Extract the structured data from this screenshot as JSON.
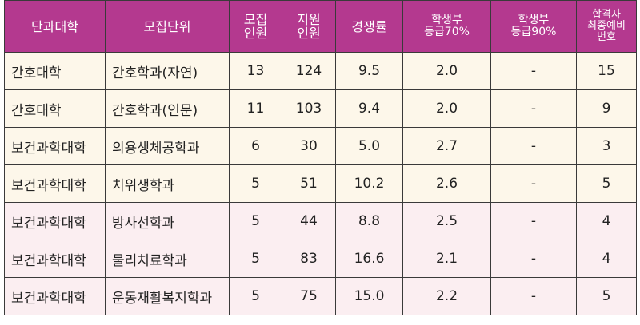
{
  "headers": [
    {
      "key": "college",
      "lines": [
        "단과대학"
      ]
    },
    {
      "key": "unit",
      "lines": [
        "모집단위"
      ]
    },
    {
      "key": "recruit",
      "lines": [
        "모집",
        "인원"
      ]
    },
    {
      "key": "applicants",
      "lines": [
        "지원",
        "인원"
      ]
    },
    {
      "key": "ratio",
      "lines": [
        "경쟁률"
      ]
    },
    {
      "key": "grade70",
      "lines": [
        "학생부",
        "등급70%"
      ]
    },
    {
      "key": "grade90",
      "lines": [
        "학생부",
        "등급90%"
      ]
    },
    {
      "key": "waitlist",
      "lines": [
        "합격자",
        "최종예비",
        "번호"
      ]
    }
  ],
  "rows": [
    {
      "college": "간호대학",
      "unit": "간호학과(자연)",
      "recruit": "13",
      "applicants": "124",
      "ratio": "9.5",
      "grade70": "2.0",
      "grade90": "-",
      "waitlist": "15"
    },
    {
      "college": "간호대학",
      "unit": "간호학과(인문)",
      "recruit": "11",
      "applicants": "103",
      "ratio": "9.4",
      "grade70": "2.0",
      "grade90": "-",
      "waitlist": "9"
    },
    {
      "college": "보건과학대학",
      "unit": "의용생체공학과",
      "recruit": "6",
      "applicants": "30",
      "ratio": "5.0",
      "grade70": "2.7",
      "grade90": "-",
      "waitlist": "3"
    },
    {
      "college": "보건과학대학",
      "unit": "치위생학과",
      "recruit": "5",
      "applicants": "51",
      "ratio": "10.2",
      "grade70": "2.6",
      "grade90": "-",
      "waitlist": "5"
    },
    {
      "college": "보건과학대학",
      "unit": "방사선학과",
      "recruit": "5",
      "applicants": "44",
      "ratio": "8.8",
      "grade70": "2.5",
      "grade90": "-",
      "waitlist": "4"
    },
    {
      "college": "보건과학대학",
      "unit": "물리치료학과",
      "recruit": "5",
      "applicants": "83",
      "ratio": "16.6",
      "grade70": "2.1",
      "grade90": "-",
      "waitlist": "4"
    },
    {
      "college": "보건과학대학",
      "unit": "운동재활복지학과",
      "recruit": "5",
      "applicants": "75",
      "ratio": "15.0",
      "grade70": "2.2",
      "grade90": "-",
      "waitlist": "5"
    }
  ],
  "colors": {
    "header_bg": "#b4398f",
    "header_text": "#ffffff",
    "band_a": "#fdf7ea",
    "band_b": "#fbeef1",
    "border": "#3a3a3a"
  }
}
